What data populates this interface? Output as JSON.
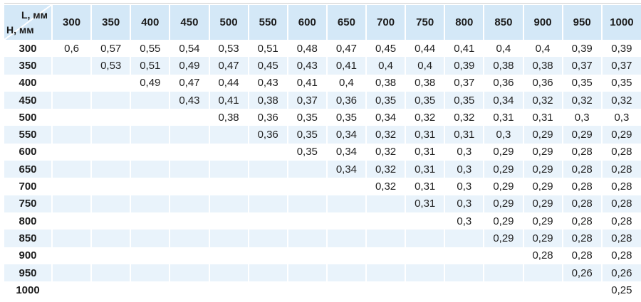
{
  "colors": {
    "header_bg": "#d4e8f7",
    "stripe_bg": "#e9f3fb",
    "top_border": "#cccccc"
  },
  "chart_data": {
    "type": "table",
    "corner": {
      "top_label": "L, мм",
      "bottom_label": "H, мм"
    },
    "columns": [
      "300",
      "350",
      "400",
      "450",
      "500",
      "550",
      "600",
      "650",
      "700",
      "750",
      "800",
      "850",
      "900",
      "950",
      "1000"
    ],
    "rows": [
      {
        "h": "300",
        "values": [
          "0,6",
          "0,57",
          "0,55",
          "0,54",
          "0,53",
          "0,51",
          "0,48",
          "0,47",
          "0,45",
          "0,44",
          "0,41",
          "0,4",
          "0,4",
          "0,39",
          "0,39"
        ]
      },
      {
        "h": "350",
        "values": [
          "",
          "0,53",
          "0,51",
          "0,49",
          "0,47",
          "0,45",
          "0,43",
          "0,41",
          "0,4",
          "0,4",
          "0,39",
          "0,38",
          "0,38",
          "0,37",
          "0,37"
        ]
      },
      {
        "h": "400",
        "values": [
          "",
          "",
          "0,49",
          "0,47",
          "0,44",
          "0,43",
          "0,41",
          "0,4",
          "0,38",
          "0,38",
          "0,37",
          "0,36",
          "0,36",
          "0,35",
          "0,35"
        ]
      },
      {
        "h": "450",
        "values": [
          "",
          "",
          "",
          "0,43",
          "0,41",
          "0,38",
          "0,37",
          "0,36",
          "0,35",
          "0,35",
          "0,35",
          "0,34",
          "0,32",
          "0,32",
          "0,32"
        ]
      },
      {
        "h": "500",
        "values": [
          "",
          "",
          "",
          "",
          "0,38",
          "0,36",
          "0,35",
          "0,35",
          "0,34",
          "0,32",
          "0,32",
          "0,31",
          "0,31",
          "0,3",
          "0,3"
        ]
      },
      {
        "h": "550",
        "values": [
          "",
          "",
          "",
          "",
          "",
          "0,36",
          "0,35",
          "0,34",
          "0,32",
          "0,31",
          "0,31",
          "0,3",
          "0,29",
          "0,29",
          "0,29"
        ]
      },
      {
        "h": "600",
        "values": [
          "",
          "",
          "",
          "",
          "",
          "",
          "0,35",
          "0,34",
          "0,32",
          "0,31",
          "0,3",
          "0,29",
          "0,29",
          "0,28",
          "0,28"
        ]
      },
      {
        "h": "650",
        "values": [
          "",
          "",
          "",
          "",
          "",
          "",
          "",
          "0,34",
          "0,32",
          "0,31",
          "0,3",
          "0,29",
          "0,29",
          "0,28",
          "0,28"
        ]
      },
      {
        "h": "700",
        "values": [
          "",
          "",
          "",
          "",
          "",
          "",
          "",
          "",
          "0,32",
          "0,31",
          "0,3",
          "0,29",
          "0,29",
          "0,28",
          "0,28"
        ]
      },
      {
        "h": "750",
        "values": [
          "",
          "",
          "",
          "",
          "",
          "",
          "",
          "",
          "",
          "0,31",
          "0,3",
          "0,29",
          "0,29",
          "0,28",
          "0,28"
        ]
      },
      {
        "h": "800",
        "values": [
          "",
          "",
          "",
          "",
          "",
          "",
          "",
          "",
          "",
          "",
          "0,3",
          "0,29",
          "0,29",
          "0,28",
          "0,28"
        ]
      },
      {
        "h": "850",
        "values": [
          "",
          "",
          "",
          "",
          "",
          "",
          "",
          "",
          "",
          "",
          "",
          "0,29",
          "0,29",
          "0,28",
          "0,28"
        ]
      },
      {
        "h": "900",
        "values": [
          "",
          "",
          "",
          "",
          "",
          "",
          "",
          "",
          "",
          "",
          "",
          "",
          "0,28",
          "0,28",
          "0,28"
        ]
      },
      {
        "h": "950",
        "values": [
          "",
          "",
          "",
          "",
          "",
          "",
          "",
          "",
          "",
          "",
          "",
          "",
          "",
          "0,26",
          "0,26"
        ]
      },
      {
        "h": "1000",
        "values": [
          "",
          "",
          "",
          "",
          "",
          "",
          "",
          "",
          "",
          "",
          "",
          "",
          "",
          "",
          "0,25"
        ]
      }
    ]
  }
}
